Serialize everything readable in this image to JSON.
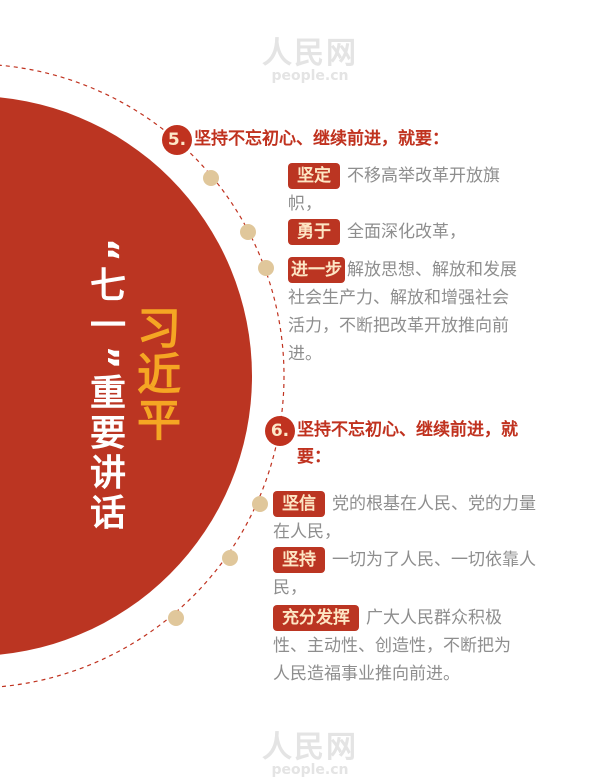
{
  "watermark": {
    "cn": "人民网",
    "en": "people.cn"
  },
  "title": {
    "name": "习近平",
    "speech": "“七一”重要讲话"
  },
  "sections": [
    {
      "number": "5.",
      "heading": "坚持不忘初心、继续前进，就要：",
      "items": [
        {
          "tag": "坚定",
          "text": "不移高举改革开放旗帜，"
        },
        {
          "tag": "勇于",
          "text": "全面深化改革，"
        },
        {
          "tag": "进一步",
          "text": "解放思想、解放和发展社会生产力、解放和增强社会活力，不断把改革开放推向前进。"
        }
      ]
    },
    {
      "number": "6.",
      "heading": "坚持不忘初心、继续前进，就要：",
      "items": [
        {
          "tag": "坚信",
          "text": "党的根基在人民、党的力量在人民，"
        },
        {
          "tag": "坚持",
          "text": "一切为了人民、一切依靠人民，"
        },
        {
          "tag": "充分发挥",
          "text": "广大人民群众积极性、主动性、创造性，不断把为人民造福事业推向前进。"
        }
      ]
    }
  ],
  "colors": {
    "red": "#bb3522",
    "orange": "#f5a623",
    "dot": "#e0c79b",
    "text": "#8e8e8e"
  }
}
